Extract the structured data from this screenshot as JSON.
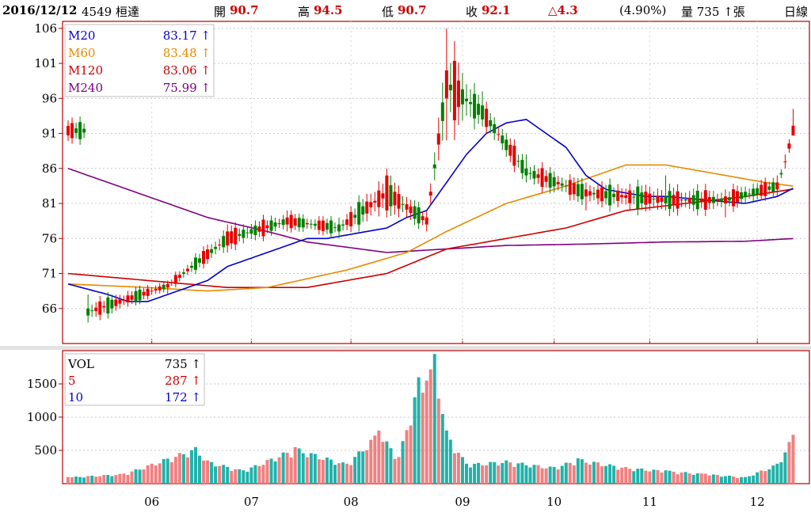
{
  "header": {
    "date": "2016/12/12",
    "stock": "4549 桓達",
    "open_label": "開",
    "open": "90.7",
    "high_label": "高",
    "high": "94.5",
    "low_label": "低",
    "low": "90.7",
    "close_label": "收",
    "close": "92.1",
    "change": "△4.3",
    "change_pct": "(4.90%)",
    "volume_text": "量 735 ↑張",
    "period": "日線"
  },
  "colors": {
    "up": "#e60000",
    "down": "#008000",
    "vol_up": "#f08080",
    "vol_down": "#20b2aa",
    "m20": "#0000cc",
    "m60": "#e68a00",
    "m120": "#cc0000",
    "m240": "#800080",
    "frame": "#b00000"
  },
  "chart_data": [
    {
      "type": "candlestick",
      "ylim": [
        61,
        107
      ],
      "yticks": [
        106,
        101,
        96,
        91,
        86,
        81,
        76,
        71,
        66
      ],
      "x_tick_labels": [
        "06",
        "07",
        "08",
        "09",
        "10",
        "11",
        "12"
      ],
      "legend": [
        {
          "name": "M20",
          "value": "83.17 ↑"
        },
        {
          "name": "M60",
          "value": "83.48 ↑"
        },
        {
          "name": "M120",
          "value": "83.06 ↑"
        },
        {
          "name": "M240",
          "value": "75.99 ↑"
        }
      ],
      "ohlc_key_points": [
        [
          5,
          66,
          68,
          64,
          65
        ],
        [
          25,
          69,
          70,
          68,
          69.5
        ],
        [
          40,
          75,
          78,
          74,
          77
        ],
        [
          55,
          78,
          80,
          77,
          79
        ],
        [
          68,
          78,
          79,
          76,
          77
        ],
        [
          80,
          80,
          86,
          79,
          85
        ],
        [
          90,
          78,
          80,
          77,
          79
        ],
        [
          95,
          96,
          106,
          90,
          100
        ],
        [
          104,
          95,
          97,
          92,
          93
        ],
        [
          115,
          86,
          88,
          84,
          85
        ],
        [
          130,
          82,
          84,
          80,
          83
        ],
        [
          150,
          82,
          85,
          80,
          81
        ],
        [
          165,
          81,
          83,
          79,
          82
        ],
        [
          178,
          83,
          85,
          82,
          84
        ],
        [
          180,
          87,
          88,
          86,
          87
        ],
        [
          182,
          90.7,
          94.5,
          90.7,
          92.1
        ]
      ],
      "ma20": [
        [
          0,
          69.5
        ],
        [
          10,
          68
        ],
        [
          15,
          67
        ],
        [
          20,
          67
        ],
        [
          25,
          68
        ],
        [
          30,
          69
        ],
        [
          35,
          70
        ],
        [
          40,
          72
        ],
        [
          45,
          73
        ],
        [
          50,
          74
        ],
        [
          55,
          75
        ],
        [
          60,
          76
        ],
        [
          65,
          76
        ],
        [
          70,
          76.5
        ],
        [
          75,
          77
        ],
        [
          80,
          77.5
        ],
        [
          85,
          79
        ],
        [
          90,
          80
        ],
        [
          95,
          84
        ],
        [
          100,
          88
        ],
        [
          105,
          91
        ],
        [
          110,
          92.5
        ],
        [
          115,
          93
        ],
        [
          120,
          91
        ],
        [
          125,
          89
        ],
        [
          130,
          85
        ],
        [
          135,
          83
        ],
        [
          140,
          82.5
        ],
        [
          145,
          82
        ],
        [
          150,
          82
        ],
        [
          160,
          81.5
        ],
        [
          170,
          81
        ],
        [
          178,
          82
        ],
        [
          182,
          83.17
        ]
      ],
      "ma60": [
        [
          0,
          69.5
        ],
        [
          20,
          69
        ],
        [
          35,
          68.5
        ],
        [
          50,
          69
        ],
        [
          70,
          71.5
        ],
        [
          85,
          74
        ],
        [
          95,
          77
        ],
        [
          110,
          81
        ],
        [
          125,
          83.5
        ],
        [
          140,
          86.5
        ],
        [
          150,
          86.5
        ],
        [
          165,
          85
        ],
        [
          175,
          84
        ],
        [
          182,
          83.48
        ]
      ],
      "ma120": [
        [
          0,
          71
        ],
        [
          20,
          70
        ],
        [
          40,
          69
        ],
        [
          60,
          69
        ],
        [
          80,
          71
        ],
        [
          95,
          74.5
        ],
        [
          110,
          76
        ],
        [
          125,
          77.5
        ],
        [
          140,
          80
        ],
        [
          155,
          81
        ],
        [
          170,
          82
        ],
        [
          182,
          83.06
        ]
      ],
      "ma240": [
        [
          0,
          86
        ],
        [
          20,
          82
        ],
        [
          35,
          79
        ],
        [
          50,
          77
        ],
        [
          60,
          75.5
        ],
        [
          80,
          74
        ],
        [
          95,
          74.5
        ],
        [
          110,
          75
        ],
        [
          130,
          75.2
        ],
        [
          150,
          75.5
        ],
        [
          170,
          75.6
        ],
        [
          182,
          75.99
        ]
      ]
    },
    {
      "type": "bar",
      "ylim": [
        0,
        2000
      ],
      "yticks": [
        1500,
        1000,
        500
      ],
      "legend": [
        {
          "name": "VOL",
          "value": "735 ↑"
        },
        {
          "name": "5",
          "value": "287 ↑"
        },
        {
          "name": "10",
          "value": "172 ↑"
        }
      ],
      "volume_key_points": [
        [
          0,
          100
        ],
        [
          14,
          150
        ],
        [
          32,
          550
        ],
        [
          35,
          350
        ],
        [
          44,
          200
        ],
        [
          57,
          550
        ],
        [
          70,
          300
        ],
        [
          78,
          800
        ],
        [
          83,
          400
        ],
        [
          88,
          1600
        ],
        [
          90,
          1550
        ],
        [
          92,
          1950
        ],
        [
          95,
          800
        ],
        [
          100,
          300
        ],
        [
          110,
          350
        ],
        [
          122,
          250
        ],
        [
          128,
          380
        ],
        [
          140,
          250
        ],
        [
          150,
          200
        ],
        [
          160,
          150
        ],
        [
          170,
          100
        ],
        [
          178,
          300
        ],
        [
          182,
          735
        ]
      ]
    }
  ]
}
